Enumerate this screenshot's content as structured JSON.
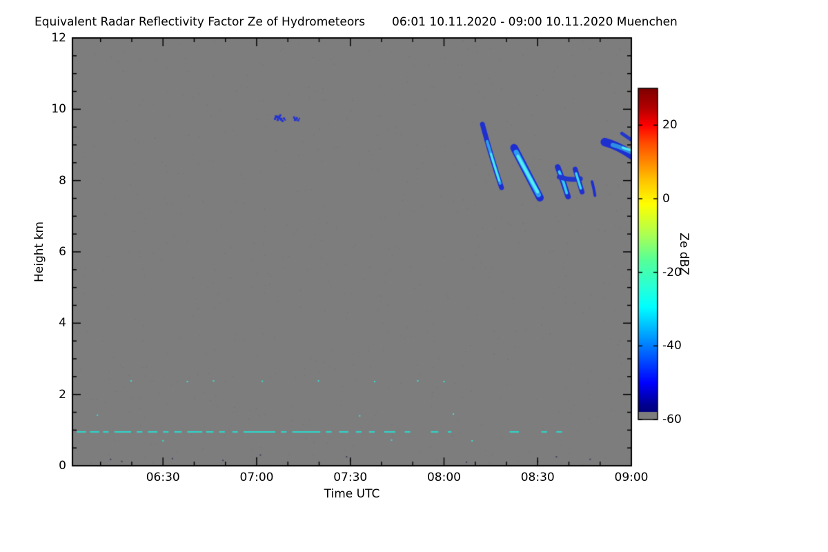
{
  "chart_data": {
    "type": "heatmap",
    "title": "Equivalent Radar Reflectivity Factor Ze of Hydrometeors",
    "subtitle": "06:01 10.11.2020 - 09:00 10.11.2020 Muenchen",
    "xlabel": "Time UTC",
    "ylabel": "Height km",
    "x_range": {
      "start": 6.0167,
      "end": 9.0,
      "start_label": "06:01",
      "end_label": "09:00"
    },
    "y_range": [
      0,
      12
    ],
    "x_ticks": [
      {
        "hour": 6.5,
        "label": "06:30"
      },
      {
        "hour": 7.0,
        "label": "07:00"
      },
      {
        "hour": 7.5,
        "label": "07:30"
      },
      {
        "hour": 8.0,
        "label": "08:00"
      },
      {
        "hour": 8.5,
        "label": "08:30"
      },
      {
        "hour": 9.0,
        "label": "09:00"
      }
    ],
    "x_minor_minutes": 10,
    "y_ticks": [
      {
        "km": 0,
        "label": "0"
      },
      {
        "km": 2,
        "label": "2"
      },
      {
        "km": 4,
        "label": "4"
      },
      {
        "km": 6,
        "label": "6"
      },
      {
        "km": 8,
        "label": "8"
      },
      {
        "km": 10,
        "label": "10"
      },
      {
        "km": 12,
        "label": "12"
      }
    ],
    "y_minor_km": 0.5,
    "background_color": "#7d7d7d",
    "colorbar": {
      "label": "Ze dBZ",
      "vmin": -60,
      "vmax": 30,
      "ticks": [
        {
          "value": 20,
          "label": "20"
        },
        {
          "value": 0,
          "label": "0"
        },
        {
          "value": -20,
          "label": "-20"
        },
        {
          "value": -40,
          "label": "-40"
        },
        {
          "value": -60,
          "label": "-60"
        }
      ],
      "gradient": [
        {
          "pos": 0.0,
          "color": "#7f0000"
        },
        {
          "pos": 0.06,
          "color": "#b30000"
        },
        {
          "pos": 0.111,
          "color": "#ff0000"
        },
        {
          "pos": 0.167,
          "color": "#ff4d00"
        },
        {
          "pos": 0.222,
          "color": "#ff8800"
        },
        {
          "pos": 0.278,
          "color": "#ffc400"
        },
        {
          "pos": 0.35,
          "color": "#ffff00"
        },
        {
          "pos": 0.444,
          "color": "#aaff55"
        },
        {
          "pos": 0.52,
          "color": "#55ff99"
        },
        {
          "pos": 0.6,
          "color": "#28ffd7"
        },
        {
          "pos": 0.66,
          "color": "#00ffff"
        },
        {
          "pos": 0.73,
          "color": "#00b2ff"
        },
        {
          "pos": 0.778,
          "color": "#007cff"
        },
        {
          "pos": 0.85,
          "color": "#002cff"
        },
        {
          "pos": 0.89,
          "color": "#0000ff"
        },
        {
          "pos": 0.955,
          "color": "#000093"
        },
        {
          "pos": 0.976,
          "color": "#00007f"
        },
        {
          "pos": 0.978,
          "color": "#7d7d7d"
        },
        {
          "pos": 1.0,
          "color": "#7d7d7d"
        }
      ],
      "under_range_color": "#7d7d7d"
    },
    "features": {
      "streaks": [
        {
          "name": "fall-streak-0812",
          "layers": [
            {
              "points": [
                [
                  8.205,
                  9.58
                ],
                [
                  8.25,
                  8.7
                ],
                [
                  8.307,
                  7.8
                ]
              ],
              "color": "#1e2fd0",
              "width": 7
            },
            {
              "points": [
                [
                  8.23,
                  9.1
                ],
                [
                  8.265,
                  8.5
                ],
                [
                  8.3,
                  7.92
                ]
              ],
              "color": "#2f9fe8",
              "width": 4
            },
            {
              "points": [
                [
                  8.25,
                  8.75
                ],
                [
                  8.275,
                  8.3
                ],
                [
                  8.295,
                  8.0
                ]
              ],
              "color": "#49e9f2",
              "width": 3
            }
          ]
        },
        {
          "name": "fall-streak-0824",
          "layers": [
            {
              "points": [
                [
                  8.374,
                  8.92
                ],
                [
                  8.44,
                  8.25
                ],
                [
                  8.512,
                  7.52
                ]
              ],
              "color": "#1c2ed2",
              "width": 11
            },
            {
              "points": [
                [
                  8.385,
                  8.8
                ],
                [
                  8.445,
                  8.2
                ],
                [
                  8.505,
                  7.6
                ]
              ],
              "color": "#2e9ff0",
              "width": 7
            },
            {
              "points": [
                [
                  8.395,
                  8.68
                ],
                [
                  8.45,
                  8.15
                ],
                [
                  8.5,
                  7.68
                ]
              ],
              "color": "#52ecf5",
              "width": 4.5
            }
          ]
        },
        {
          "name": "fall-streak-0837a",
          "layers": [
            {
              "points": [
                [
                  8.607,
                  8.38
                ],
                [
                  8.638,
                  7.95
                ],
                [
                  8.662,
                  7.55
                ]
              ],
              "color": "#1e2fd0",
              "width": 8
            },
            {
              "points": [
                [
                  8.615,
                  8.25
                ],
                [
                  8.64,
                  7.95
                ],
                [
                  8.655,
                  7.65
                ]
              ],
              "color": "#35c8ee",
              "width": 4
            }
          ]
        },
        {
          "name": "fall-streak-0837-bridge",
          "layers": [
            {
              "points": [
                [
                  8.615,
                  8.1
                ],
                [
                  8.67,
                  8.0
                ],
                [
                  8.728,
                  8.05
                ]
              ],
              "color": "#2336cc",
              "width": 7
            }
          ]
        },
        {
          "name": "fall-streak-0843",
          "layers": [
            {
              "points": [
                [
                  8.7,
                  8.32
                ],
                [
                  8.72,
                  7.97
                ],
                [
                  8.737,
                  7.68
                ]
              ],
              "color": "#1e2fd0",
              "width": 7
            },
            {
              "points": [
                [
                  8.705,
                  8.2
                ],
                [
                  8.72,
                  7.95
                ],
                [
                  8.73,
                  7.78
                ]
              ],
              "color": "#3ad6ee",
              "width": 3.5
            }
          ]
        },
        {
          "name": "speck-streak-0848",
          "layers": [
            {
              "points": [
                [
                  8.79,
                  7.97
                ],
                [
                  8.8,
                  7.78
                ],
                [
                  8.806,
                  7.58
                ]
              ],
              "color": "#1e2fd0",
              "width": 4
            }
          ]
        },
        {
          "name": "cloud-0856",
          "layers": [
            {
              "points": [
                [
                  8.858,
                  9.08
                ],
                [
                  8.93,
                  8.98
                ],
                [
                  9.005,
                  8.7
                ]
              ],
              "color": "#1e2fd0",
              "width": 12
            },
            {
              "points": [
                [
                  8.9,
                  9.0
                ],
                [
                  8.95,
                  8.93
                ],
                [
                  9.005,
                  8.78
                ]
              ],
              "color": "#2e8fe0",
              "width": 6
            },
            {
              "points": [
                [
                  8.955,
                  8.92
                ],
                [
                  9.005,
                  8.84
                ]
              ],
              "color": "#4fe6f2",
              "width": 3.5
            },
            {
              "points": [
                [
                  8.95,
                  9.32
                ],
                [
                  9.005,
                  9.12
                ]
              ],
              "color": "#2336cc",
              "width": 5
            }
          ]
        }
      ],
      "high_cloud_specks": {
        "color": "#2433d2",
        "points": [
          [
            7.098,
            9.73,
            3
          ],
          [
            7.104,
            9.79,
            4
          ],
          [
            7.112,
            9.7,
            3
          ],
          [
            7.118,
            9.77,
            5
          ],
          [
            7.126,
            9.83,
            3
          ],
          [
            7.13,
            9.72,
            4
          ],
          [
            7.138,
            9.67,
            3
          ],
          [
            7.146,
            9.74,
            3
          ],
          [
            7.152,
            9.7,
            2
          ],
          [
            7.2,
            9.77,
            3
          ],
          [
            7.206,
            9.71,
            4
          ],
          [
            7.214,
            9.75,
            3
          ],
          [
            7.222,
            9.69,
            3
          ],
          [
            7.228,
            9.74,
            2
          ]
        ]
      },
      "clutter_line": {
        "height_km": 0.95,
        "color": "#2bd9cf",
        "width": 2,
        "segments": [
          [
            6.04,
            6.09
          ],
          [
            6.11,
            6.16
          ],
          [
            6.18,
            6.21
          ],
          [
            6.24,
            6.33
          ],
          [
            6.36,
            6.39
          ],
          [
            6.42,
            6.47
          ],
          [
            6.5,
            6.53
          ],
          [
            6.56,
            6.6
          ],
          [
            6.63,
            6.71
          ],
          [
            6.73,
            6.77
          ],
          [
            6.8,
            6.83
          ],
          [
            6.87,
            6.9
          ],
          [
            6.93,
            7.1
          ],
          [
            7.13,
            7.16
          ],
          [
            7.19,
            7.34
          ],
          [
            7.37,
            7.4
          ],
          [
            7.44,
            7.49
          ],
          [
            7.53,
            7.56
          ],
          [
            7.6,
            7.63
          ],
          [
            7.68,
            7.74
          ],
          [
            7.79,
            7.82
          ],
          [
            7.93,
            7.97
          ],
          [
            8.02,
            8.04
          ],
          [
            8.35,
            8.4
          ],
          [
            8.52,
            8.55
          ],
          [
            8.6,
            8.63
          ]
        ]
      },
      "scatter_dots": {
        "color": "#35e6d8",
        "points": [
          [
            6.33,
            2.38
          ],
          [
            6.63,
            2.36
          ],
          [
            6.77,
            2.38
          ],
          [
            7.03,
            2.37
          ],
          [
            7.33,
            2.38
          ],
          [
            7.63,
            2.36
          ],
          [
            7.86,
            2.38
          ],
          [
            8.0,
            2.36
          ],
          [
            6.15,
            1.42
          ],
          [
            7.55,
            1.4
          ],
          [
            8.05,
            1.45
          ],
          [
            7.72,
            0.72
          ],
          [
            8.15,
            0.7
          ],
          [
            6.5,
            0.7
          ]
        ]
      },
      "dark_specks": {
        "color": "#3c3f5e",
        "points": [
          [
            6.22,
            0.18
          ],
          [
            6.28,
            0.12
          ],
          [
            6.55,
            0.2
          ],
          [
            6.82,
            0.15
          ],
          [
            7.0,
            0.22
          ],
          [
            7.02,
            0.3
          ],
          [
            7.48,
            0.25
          ],
          [
            7.5,
            0.15
          ],
          [
            8.12,
            0.1
          ],
          [
            8.5,
            0.12
          ],
          [
            8.78,
            0.18
          ],
          [
            8.6,
            0.25
          ]
        ]
      }
    }
  }
}
